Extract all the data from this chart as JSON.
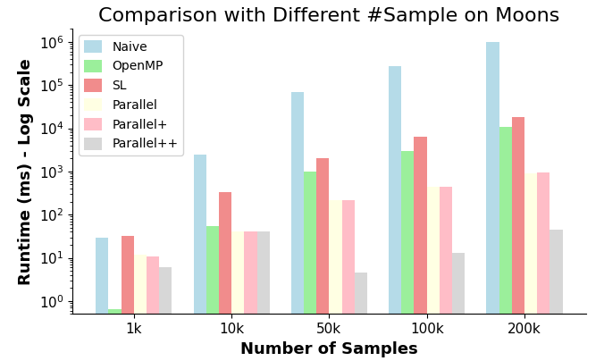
{
  "title": "Comparison with Different #Sample on Moons",
  "xlabel": "Number of Samples",
  "ylabel": "Runtime (ms) - Log Scale",
  "categories": [
    "1k",
    "10k",
    "50k",
    "100k",
    "200k"
  ],
  "series": [
    {
      "label": "Naive",
      "color": "#add8e6",
      "values": [
        30,
        2500,
        70000,
        280000,
        1000000
      ]
    },
    {
      "label": "OpenMP",
      "color": "#90ee90",
      "values": [
        0.65,
        55,
        1000,
        3000,
        11000
      ]
    },
    {
      "label": "SL",
      "color": "#f08080",
      "values": [
        32,
        330,
        2000,
        6500,
        18000
      ]
    },
    {
      "label": "Parallel",
      "color": "#ffffe0",
      "values": [
        12,
        40,
        220,
        450,
        900
      ]
    },
    {
      "label": "Parallel+",
      "color": "#ffb6c1",
      "values": [
        11,
        40,
        220,
        450,
        950
      ]
    },
    {
      "label": "Parallel++",
      "color": "#d3d3d3",
      "values": [
        6,
        40,
        4.5,
        13,
        45
      ]
    }
  ],
  "ylim": [
    0.5,
    2000000
  ],
  "title_fontsize": 16,
  "label_fontsize": 13,
  "tick_fontsize": 11,
  "bar_width": 0.13,
  "figsize": [
    6.76,
    4.04
  ],
  "dpi": 100
}
